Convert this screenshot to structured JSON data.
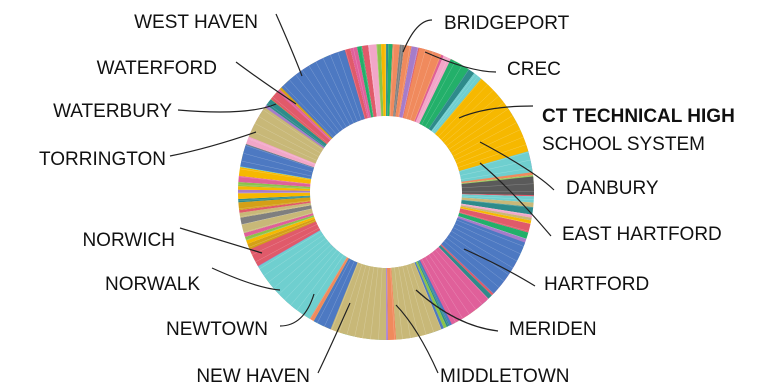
{
  "chart_data": {
    "type": "pie",
    "donut": true,
    "title": "",
    "unit": "",
    "major_slices": [
      {
        "label": "BRIDGEPORT",
        "value": 2.5,
        "color": "#f08a5d"
      },
      {
        "label": "CREC",
        "value": 2.2,
        "color": "#23b06a"
      },
      {
        "label": "CT TECHNICAL HIGH SCHOOL SYSTEM",
        "value": 9.5,
        "color": "#f6b800",
        "label_lines": [
          "CT TECHNICAL HIGH",
          "SCHOOL SYSTEM"
        ],
        "label_bold_lines": 1
      },
      {
        "label": "DANBURY",
        "value": 2.3,
        "color": "#6fcfcf"
      },
      {
        "label": "EAST HARTFORD",
        "value": 2.0,
        "color": "#5a5a5a"
      },
      {
        "label": "HARTFORD",
        "value": 6.5,
        "color": "#4d79c2"
      },
      {
        "label": "MERIDEN",
        "value": 4.6,
        "color": "#e0609a"
      },
      {
        "label": "MIDDLETOWN",
        "value": 5.0,
        "color": "#c8b878"
      },
      {
        "label": "NEW HAVEN",
        "value": 6.2,
        "color": "#c8b878"
      },
      {
        "label": "NEWTOWN",
        "value": 2.0,
        "color": "#4d79c2"
      },
      {
        "label": "NORWALK",
        "value": 8.0,
        "color": "#6fcfcf"
      },
      {
        "label": "NORWICH",
        "value": 2.0,
        "color": "#e05a6a"
      },
      {
        "label": "TORRINGTON",
        "value": 2.4,
        "color": "#4d79c2"
      },
      {
        "label": "WATERBURY",
        "value": 3.6,
        "color": "#c8b878"
      },
      {
        "label": "WATERFORD",
        "value": 1.0,
        "color": "#e05a6a"
      },
      {
        "label": "WEST HAVEN",
        "value": 8.0,
        "color": "#4d79c2"
      }
    ],
    "other_slices_note": "many thin unlabeled slices in between",
    "palette": [
      "#4d79c2",
      "#f6b800",
      "#23b06a",
      "#e05a6a",
      "#6fcfcf",
      "#c8b878",
      "#e0609a",
      "#f08a5d",
      "#a67cc9",
      "#8bc34a",
      "#7f7f7f",
      "#f2a6c8",
      "#2e8b8b",
      "#d4a017"
    ]
  }
}
